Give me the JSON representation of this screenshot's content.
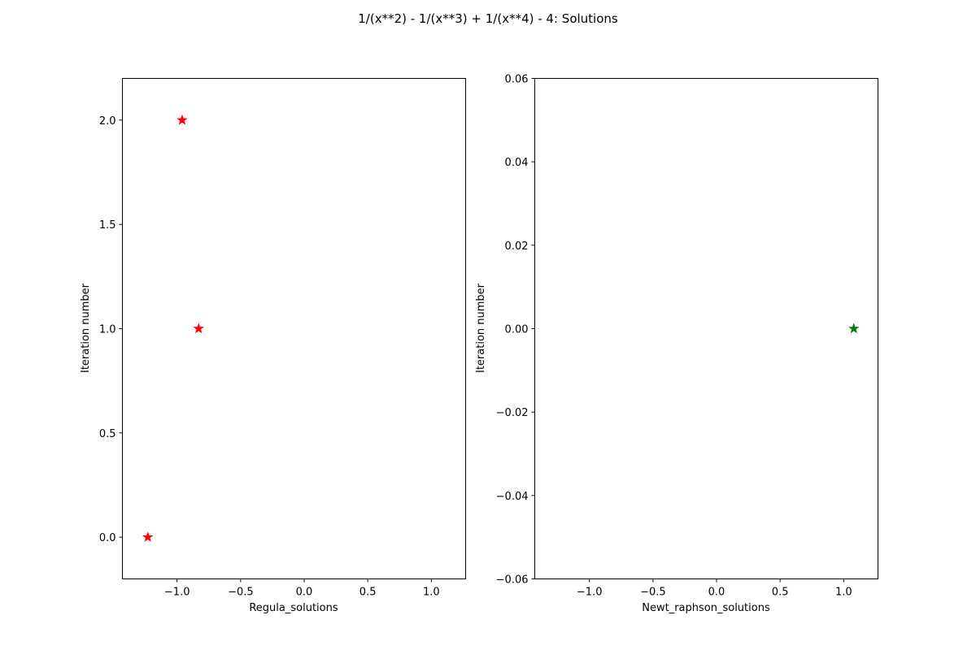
{
  "suptitle": "1/(x**2) - 1/(x**3) + 1/(x**4) - 4: Solutions",
  "chart_data": [
    {
      "type": "scatter",
      "marker": "star",
      "xlabel": "Regula_solutions",
      "ylabel": "Iteration number",
      "xlim": [
        -1.43,
        1.27
      ],
      "ylim": [
        -0.2,
        2.2
      ],
      "xticks": [
        -1.0,
        -0.5,
        0.0,
        0.5,
        1.0
      ],
      "xtick_labels": [
        "−1.0",
        "−0.5",
        "0.0",
        "0.5",
        "1.0"
      ],
      "yticks": [
        0.0,
        0.5,
        1.0,
        1.5,
        2.0
      ],
      "ytick_labels": [
        "0.0",
        "0.5",
        "1.0",
        "1.5",
        "2.0"
      ],
      "grid": false,
      "series": [
        {
          "color": "#ff0000",
          "x": [
            -1.23,
            -0.83,
            -0.96
          ],
          "y": [
            0,
            1,
            2
          ]
        }
      ]
    },
    {
      "type": "scatter",
      "marker": "star",
      "xlabel": "Newt_raphson_solutions",
      "ylabel": "Iteration number",
      "xlim": [
        -1.43,
        1.27
      ],
      "ylim": [
        -0.06,
        0.06
      ],
      "xticks": [
        -1.0,
        -0.5,
        0.0,
        0.5,
        1.0
      ],
      "xtick_labels": [
        "−1.0",
        "−0.5",
        "0.0",
        "0.5",
        "1.0"
      ],
      "yticks": [
        -0.06,
        -0.04,
        -0.02,
        0.0,
        0.02,
        0.04,
        0.06
      ],
      "ytick_labels": [
        "−0.06",
        "−0.04",
        "−0.02",
        "0.00",
        "0.02",
        "0.04",
        "0.06"
      ],
      "grid": false,
      "series": [
        {
          "color": "#008000",
          "x": [
            1.08
          ],
          "y": [
            0
          ]
        }
      ]
    }
  ]
}
